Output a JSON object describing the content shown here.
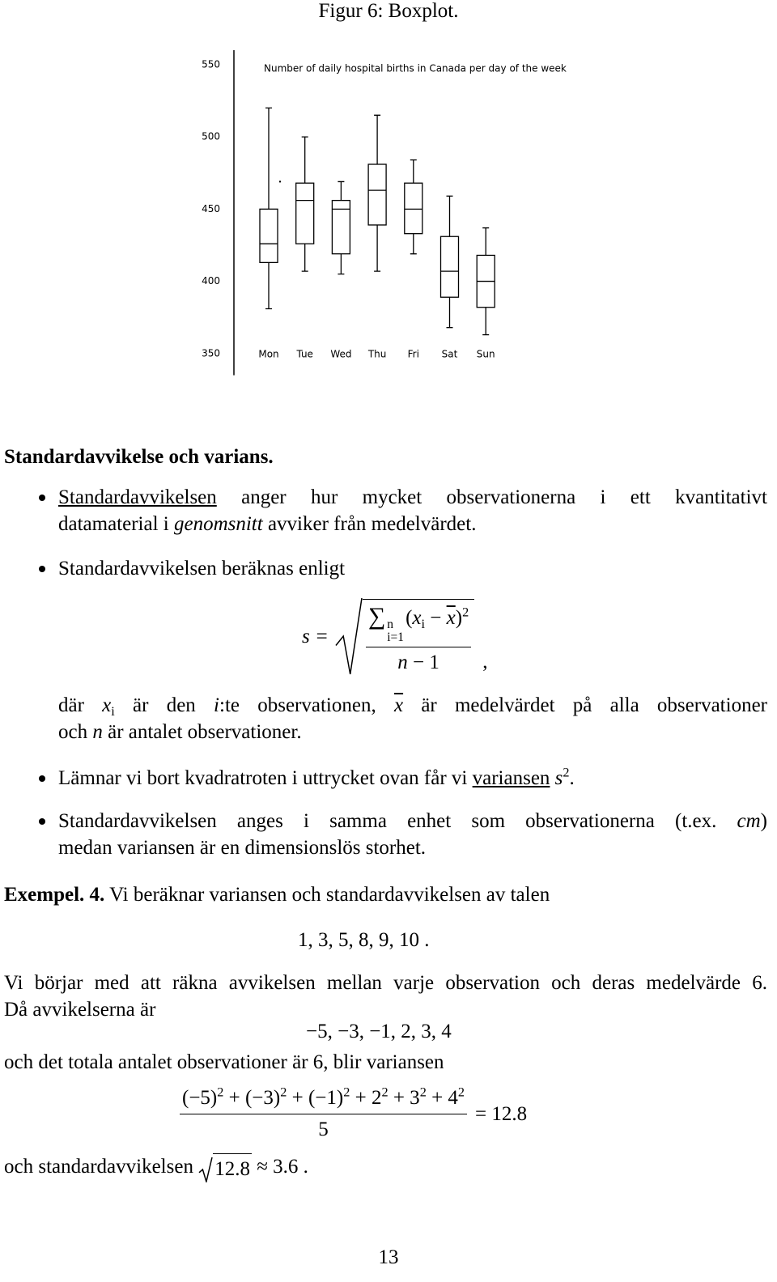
{
  "figure_caption": "Figur 6: Boxplot.",
  "chart_data": {
    "type": "box",
    "title": "Number of daily hospital births in Canada per day of the week",
    "categories": [
      "Mon",
      "Tue",
      "Wed",
      "Thu",
      "Fri",
      "Sat",
      "Sun"
    ],
    "boxes": [
      {
        "whisker_low": 381,
        "q1": 413,
        "median": 426,
        "q3": 450,
        "whisker_high": 520,
        "outliers": [
          469
        ]
      },
      {
        "whisker_low": 407,
        "q1": 426,
        "median": 456,
        "q3": 468,
        "whisker_high": 500,
        "outliers": []
      },
      {
        "whisker_low": 405,
        "q1": 419,
        "median": 450,
        "q3": 456,
        "whisker_high": 469,
        "outliers": []
      },
      {
        "whisker_low": 407,
        "q1": 439,
        "median": 463,
        "q3": 481,
        "whisker_high": 515,
        "outliers": []
      },
      {
        "whisker_low": 419,
        "q1": 433,
        "median": 450,
        "q3": 468,
        "whisker_high": 484,
        "outliers": []
      },
      {
        "whisker_low": 368,
        "q1": 389,
        "median": 407,
        "q3": 431,
        "whisker_high": 459,
        "outliers": []
      },
      {
        "whisker_low": 363,
        "q1": 382,
        "median": 400,
        "q3": 418,
        "whisker_high": 437,
        "outliers": []
      }
    ],
    "color": "#000000",
    "ylim": [
      335,
      560
    ],
    "yticks": [
      350,
      400,
      450,
      500,
      550
    ],
    "grid": false
  },
  "blocks": [
    {
      "kind": "heading",
      "lines": [
        [
          "Standardavvikelse och varians."
        ]
      ]
    },
    {
      "kind": "bullet",
      "lines": [
        [
          {
            "text": "Standardavvikelsen",
            "style": "u"
          },
          " anger hur mycket observationerna i ett kvantitativt"
        ],
        [
          "datamaterial i ",
          {
            "text": "genomsnitt",
            "style": "i"
          },
          " avviker från medelvärdet."
        ]
      ]
    },
    {
      "kind": "bullet",
      "lines": [
        [
          "Standardavvikelsen beräknas enligt"
        ]
      ]
    },
    {
      "kind": "sqrt-fraction",
      "lhs": "s =",
      "numerator": [
        {
          "text": "∑",
          "style": "op"
        },
        {
          "sup": "n",
          "sub": "i=1"
        },
        "(",
        {
          "text": "x",
          "style": "m"
        },
        {
          "text": "i",
          "style": "sub"
        },
        " − ",
        {
          "text": "x",
          "style": "ol"
        },
        ")",
        {
          "text": "2",
          "style": "sup"
        }
      ],
      "denominator": [
        {
          "text": "n",
          "style": "m"
        },
        " − 1"
      ],
      "after": ","
    },
    {
      "kind": "indented",
      "lines": [
        [
          "där ",
          {
            "text": "x",
            "style": "m"
          },
          {
            "text": "i",
            "style": "sub"
          },
          " är den ",
          {
            "text": "i",
            "style": "m"
          },
          ":te observationen, ",
          {
            "text": "x",
            "style": "ol"
          },
          " är medelvärdet på alla observationer"
        ],
        [
          "och ",
          {
            "text": "n",
            "style": "m"
          },
          " är antalet observationer."
        ]
      ]
    },
    {
      "kind": "bullet",
      "lines": [
        [
          "Lämnar vi bort kvadratroten i uttrycket ovan får vi ",
          {
            "text": "variansen",
            "style": "u"
          },
          " ",
          {
            "text": "s",
            "style": "m"
          },
          {
            "text": "2",
            "style": "sup"
          },
          "."
        ]
      ]
    },
    {
      "kind": "bullet",
      "lines": [
        [
          "Standardavvikelsen anges i samma enhet som observationerna (t.ex. ",
          {
            "text": "cm",
            "style": "i"
          },
          ")"
        ],
        [
          "medan variansen är en dimensionslös storhet."
        ]
      ]
    },
    {
      "kind": "text",
      "lines": [
        [
          {
            "text": "Exempel. 4.",
            "style": "b"
          },
          " Vi beräknar variansen och standardavvikelsen av talen"
        ]
      ]
    },
    {
      "kind": "display",
      "lines": [
        [
          "1, 3, 5, 8, 9, 10 ."
        ]
      ]
    },
    {
      "kind": "text",
      "lines": [
        [
          "Vi börjar med att räkna avvikelsen mellan varje observation och deras medelvärde 6."
        ],
        [
          "Då avvikelserna är"
        ]
      ]
    },
    {
      "kind": "display",
      "lines": [
        [
          "−5, −3, −1, 2, 3, 4"
        ]
      ]
    },
    {
      "kind": "text",
      "lines": [
        [
          "och det totala antalet observationer är 6, blir variansen"
        ]
      ]
    },
    {
      "kind": "fraction",
      "numerator": [
        "(−5)",
        {
          "text": "2",
          "style": "sup"
        },
        " + (−3)",
        {
          "text": "2",
          "style": "sup"
        },
        " + (−1)",
        {
          "text": "2",
          "style": "sup"
        },
        " + 2",
        {
          "text": "2",
          "style": "sup"
        },
        " + 3",
        {
          "text": "2",
          "style": "sup"
        },
        " + 4",
        {
          "text": "2",
          "style": "sup"
        }
      ],
      "denominator": [
        "5"
      ],
      "after": "= 12.8"
    },
    {
      "kind": "text",
      "lines": [
        [
          "och standardavvikelsen ",
          {
            "text": "12.8",
            "style": "sqrt"
          },
          " ≈ 3.6 ."
        ]
      ]
    }
  ],
  "page_number": "13"
}
